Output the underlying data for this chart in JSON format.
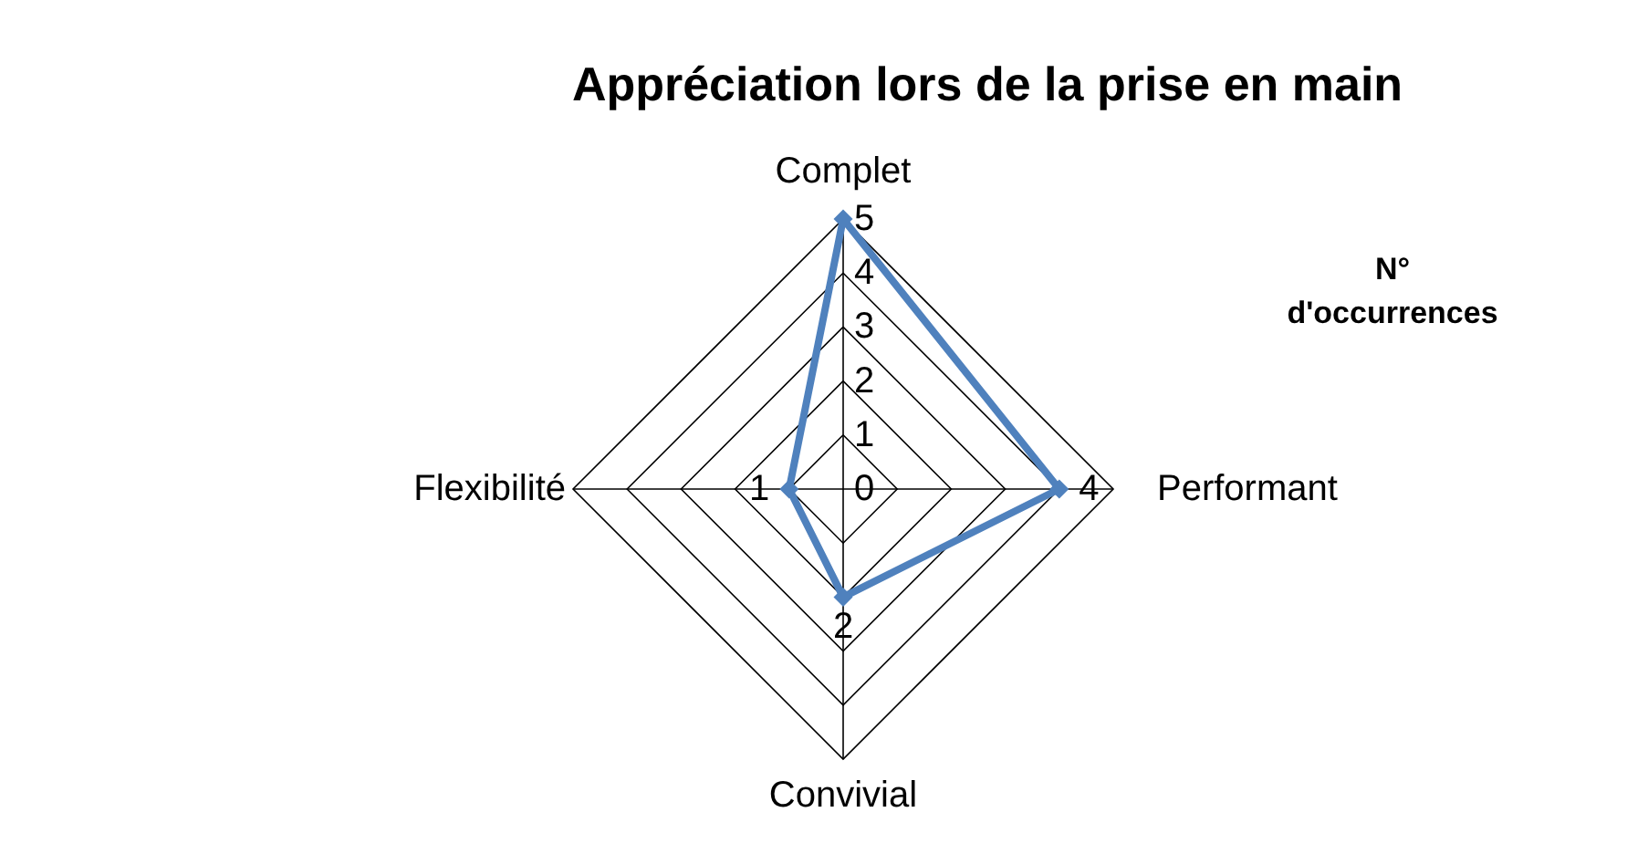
{
  "chart_data": {
    "type": "radar",
    "title": "Appréciation lors de la prise en main",
    "legend_title": "N° d'occurrences",
    "categories": [
      "Complet",
      "Performant",
      "Convivial",
      "Flexibilité"
    ],
    "series": [
      {
        "color": "#4f81bd",
        "values": [
          5,
          4,
          2,
          1
        ],
        "value_labels": [
          null,
          "4",
          "2",
          "1"
        ]
      }
    ],
    "ylim": [
      0,
      5
    ],
    "yticks": [
      0,
      1,
      2,
      3,
      4,
      5
    ],
    "grid": true,
    "marker": "diamond"
  }
}
